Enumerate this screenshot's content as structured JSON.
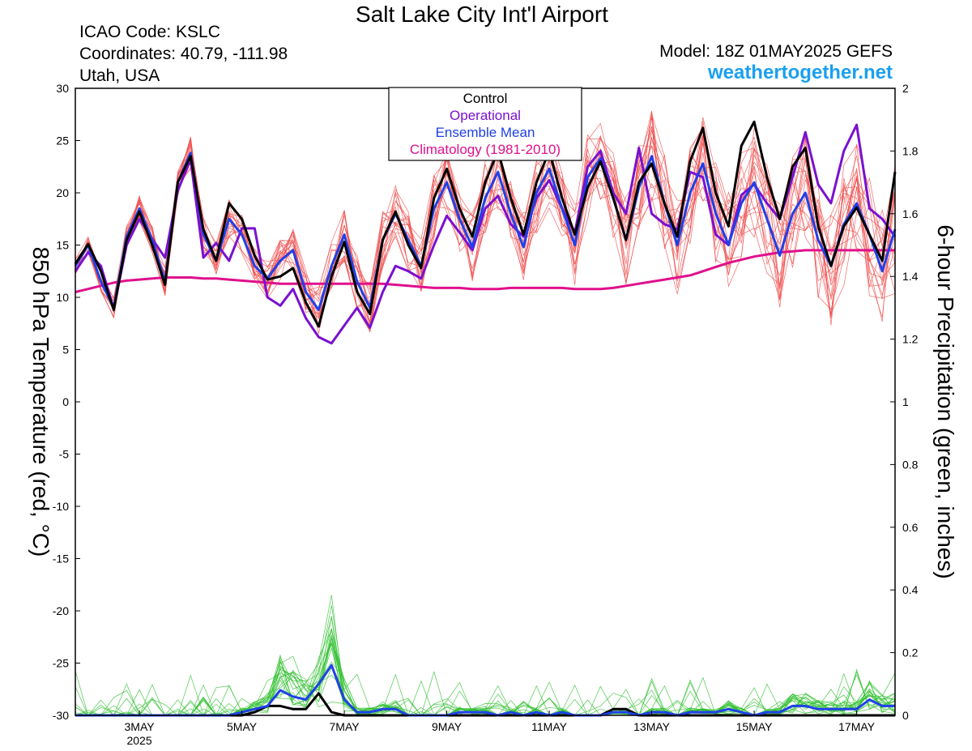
{
  "header": {
    "title": "Salt Lake City Int'l Airport",
    "icao": "ICAO Code: KSLC",
    "coordinates": "Coordinates: 40.79, -111.98",
    "region": "Utah, USA",
    "model": "Model: 18Z 01MAY2025 GEFS",
    "site": "weathertogether.net"
  },
  "chart_data": {
    "type": "line",
    "title": "Salt Lake City Int'l Airport",
    "ylabel": "850 hPa Temperature (red, °C)",
    "y2label": "6-hour Precipitation (green, inches)",
    "ylim": [
      -30,
      30
    ],
    "y2lim": [
      0,
      2
    ],
    "yticks": [
      "30",
      "25",
      "20",
      "15",
      "10",
      "5",
      "0",
      "-5",
      "-10",
      "-15",
      "-20",
      "-25",
      "-30"
    ],
    "y2ticks": [
      "2",
      "1.8",
      "1.6",
      "1.4",
      "1.2",
      "1",
      "0.8",
      "0.6",
      "0.4",
      "0.2",
      "0"
    ],
    "xlim": [
      1.75,
      17.75
    ],
    "xticks": [
      {
        "x": 3,
        "label": "3MAY",
        "sub": "2025"
      },
      {
        "x": 5,
        "label": "5MAY"
      },
      {
        "x": 7,
        "label": "7MAY"
      },
      {
        "x": 9,
        "label": "9MAY"
      },
      {
        "x": 11,
        "label": "11MAY"
      },
      {
        "x": 13,
        "label": "13MAY"
      },
      {
        "x": 15,
        "label": "15MAY"
      },
      {
        "x": 17,
        "label": "17MAY"
      }
    ],
    "legend": {
      "position": "top-center",
      "entries": [
        {
          "label": "Control",
          "color": "#000000"
        },
        {
          "label": "Operational",
          "color": "#7a10d0"
        },
        {
          "label": "Ensemble Mean",
          "color": "#2040e8"
        },
        {
          "label": "Climatology (1981-2010)",
          "color": "#e0108c"
        }
      ]
    },
    "colors": {
      "members_temperature": "#f05050",
      "members_precip": "#30c030",
      "control": "#000000",
      "operational": "#7a10d0",
      "mean": "#2040e8",
      "climatology": "#e0108c"
    },
    "time_step_days": 0.25,
    "series": [
      {
        "name": "Control",
        "values": [
          13.2,
          15.1,
          12.5,
          8.8,
          15.5,
          18.2,
          15.0,
          11.2,
          21.0,
          23.5,
          16.5,
          13.5,
          19.0,
          17.5,
          14.0,
          11.7,
          12.0,
          12.8,
          9.5,
          7.2,
          12.0,
          15.3,
          10.5,
          8.4,
          15.5,
          18.2,
          15.0,
          12.8,
          19.5,
          22.3,
          18.5,
          15.8,
          21.0,
          24.0,
          19.5,
          16.0,
          21.0,
          24.0,
          19.5,
          16.0,
          20.5,
          23.0,
          19.5,
          15.5,
          21.0,
          22.8,
          19.0,
          15.8,
          23.0,
          26.2,
          20.0,
          16.8,
          24.5,
          26.8,
          21.5,
          17.5,
          22.5,
          24.3,
          16.8,
          13.0,
          16.8,
          18.6,
          16.0,
          13.5,
          22.0
        ]
      },
      {
        "name": "Operational",
        "values": [
          12.5,
          14.3,
          13.0,
          8.9,
          15.0,
          17.5,
          15.6,
          13.8,
          20.2,
          23.2,
          13.8,
          15.2,
          13.5,
          16.6,
          16.6,
          10.0,
          9.2,
          10.8,
          8.0,
          6.2,
          5.6,
          7.3,
          9.0,
          7.1,
          10.5,
          13.0,
          12.5,
          11.8,
          15.0,
          17.8,
          16.2,
          14.5,
          18.5,
          19.7,
          17.0,
          15.8,
          19.5,
          21.2,
          18.5,
          16.2,
          22.5,
          24.0,
          20.0,
          18.0,
          24.3,
          18.0,
          17.0,
          16.5,
          22.0,
          21.5,
          16.0,
          15.0,
          19.8,
          20.8,
          19.0,
          17.5,
          21.5,
          25.8,
          20.8,
          19.0,
          24.0,
          26.5,
          18.5,
          17.5,
          15.8
        ]
      },
      {
        "name": "Ensemble Mean",
        "values": [
          13.0,
          15.0,
          11.5,
          9.0,
          15.8,
          18.5,
          15.5,
          11.5,
          21.0,
          23.8,
          16.0,
          13.5,
          17.5,
          16.0,
          13.0,
          11.8,
          13.5,
          14.5,
          10.5,
          8.8,
          13.0,
          16.0,
          11.5,
          9.0,
          15.5,
          18.0,
          15.5,
          13.0,
          18.5,
          21.0,
          17.5,
          14.8,
          19.5,
          22.0,
          18.0,
          14.8,
          20.0,
          22.3,
          18.5,
          15.0,
          21.5,
          23.3,
          19.5,
          15.5,
          20.5,
          23.5,
          19.0,
          15.0,
          20.0,
          22.8,
          18.0,
          15.0,
          19.0,
          21.0,
          17.5,
          14.0,
          18.0,
          20.0,
          15.5,
          13.0,
          17.0,
          19.0,
          16.0,
          12.5,
          16.5
        ]
      },
      {
        "name": "Climatology (1981-2010)",
        "values": [
          10.5,
          10.8,
          11.1,
          11.4,
          11.6,
          11.7,
          11.8,
          11.9,
          11.9,
          11.9,
          11.8,
          11.8,
          11.7,
          11.6,
          11.5,
          11.4,
          11.3,
          11.3,
          11.3,
          11.3,
          11.3,
          11.3,
          11.3,
          11.3,
          11.3,
          11.2,
          11.1,
          11.0,
          10.9,
          10.9,
          10.9,
          10.8,
          10.8,
          10.8,
          10.9,
          10.9,
          10.9,
          10.9,
          10.9,
          10.8,
          10.8,
          10.8,
          10.9,
          11.1,
          11.3,
          11.5,
          11.7,
          11.9,
          12.1,
          12.5,
          12.9,
          13.3,
          13.6,
          13.9,
          14.1,
          14.3,
          14.4,
          14.5,
          14.5,
          14.5,
          14.5,
          14.5,
          14.5,
          14.5,
          14.5
        ]
      },
      {
        "name": "Control precipitation",
        "axis": "y2",
        "values": [
          0,
          0,
          0,
          0,
          0,
          0,
          0,
          0,
          0,
          0,
          0,
          0,
          0,
          0,
          0.01,
          0.03,
          0.03,
          0.02,
          0.02,
          0.07,
          0.01,
          0,
          0,
          0,
          0,
          0,
          0,
          0,
          0,
          0,
          0,
          0,
          0,
          0,
          0,
          0,
          0,
          0,
          0,
          0,
          0,
          0,
          0.02,
          0.02,
          0,
          0,
          0,
          0,
          0,
          0,
          0,
          0,
          0,
          0,
          0,
          0,
          0,
          0,
          0,
          0,
          0,
          0,
          0,
          0,
          0
        ]
      },
      {
        "name": "Ensemble mean precipitation",
        "axis": "y2",
        "values": [
          0,
          0,
          0,
          0,
          0,
          0,
          0,
          0,
          0,
          0,
          0,
          0,
          0,
          0.01,
          0.02,
          0.03,
          0.08,
          0.06,
          0.05,
          0.1,
          0.16,
          0.05,
          0.01,
          0.01,
          0.02,
          0.02,
          0,
          0,
          0,
          0,
          0.01,
          0.01,
          0.01,
          0,
          0.01,
          0,
          0.01,
          0,
          0.01,
          0,
          0,
          0,
          0.01,
          0.01,
          0,
          0.01,
          0.01,
          0,
          0.01,
          0.01,
          0.01,
          0.02,
          0.01,
          0,
          0.01,
          0.01,
          0.03,
          0.03,
          0.02,
          0.02,
          0.02,
          0.02,
          0.05,
          0.03,
          0.03
        ]
      }
    ]
  }
}
